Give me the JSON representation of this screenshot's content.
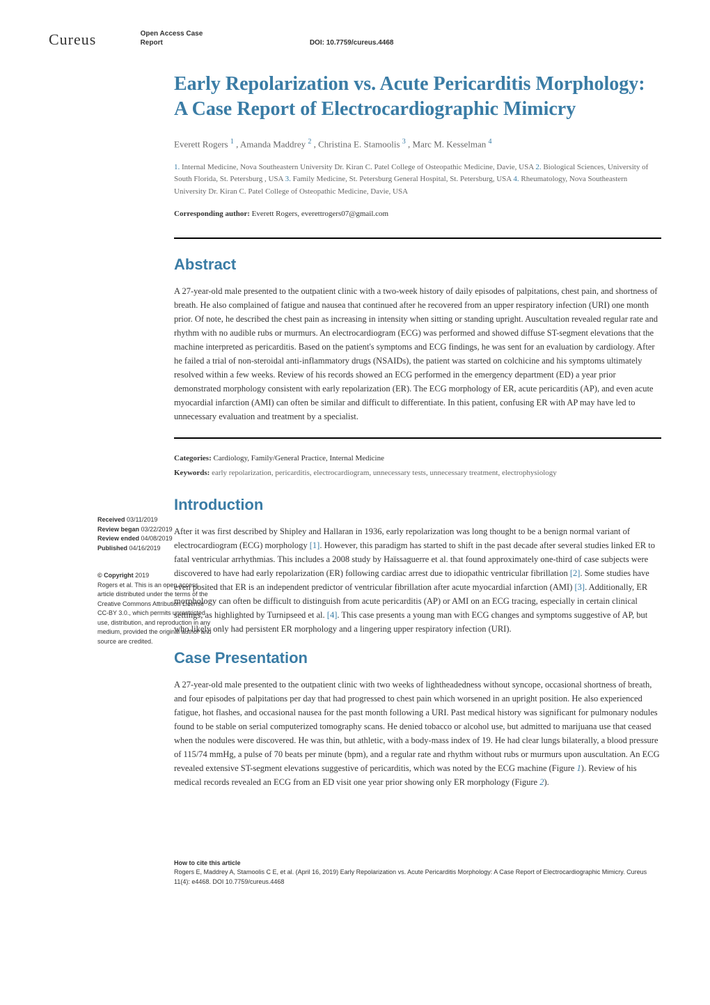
{
  "journal_name": "Cureus",
  "article_type": "Open Access Case Report",
  "doi_label": "DOI:",
  "doi_value": "10.7759/cureus.4468",
  "title": "Early Repolarization vs. Acute Pericarditis Morphology: A Case Report of Electrocardiographic Mimicry",
  "authors": {
    "a1_name": "Everett Rogers",
    "a1_sup": "1",
    "a2_name": "Amanda Maddrey",
    "a2_sup": "2",
    "a3_name": "Christina E. Stamoolis",
    "a3_sup": "3",
    "a4_name": "Marc M. Kesselman",
    "a4_sup": "4"
  },
  "affiliations": {
    "n1": "1.",
    "t1": " Internal Medicine, Nova Southeastern University Dr. Kiran C. Patel College of Osteopathic Medicine, Davie, USA ",
    "n2": "2.",
    "t2": " Biological Sciences, University of South Florida, St. Petersburg , USA ",
    "n3": "3.",
    "t3": " Family Medicine, St. Petersburg General Hospital, St. Petersburg, USA ",
    "n4": "4.",
    "t4": " Rheumatology, Nova Southeastern University Dr. Kiran C. Patel College of Osteopathic Medicine, Davie, USA"
  },
  "corresponding_label": "Corresponding author:",
  "corresponding_value": " Everett Rogers, everettrogers07@gmail.com",
  "abstract_title": "Abstract",
  "abstract_text": "A 27-year-old male presented to the outpatient clinic with a two-week history of daily episodes of palpitations, chest pain, and shortness of breath. He also complained of fatigue and nausea that continued after he recovered from an upper respiratory infection (URI) one month prior. Of note, he described the chest pain as increasing in intensity when sitting or standing upright. Auscultation revealed regular rate and rhythm with no audible rubs or murmurs. An electrocardiogram (ECG) was performed and showed diffuse ST-segment elevations that the machine interpreted as pericarditis. Based on the patient's symptoms and ECG findings, he was sent for an evaluation by cardiology. After he failed a trial of non-steroidal anti-inflammatory drugs (NSAIDs), the patient was started on colchicine and his symptoms ultimately resolved within a few weeks. Review of his records showed an ECG performed in the emergency department (ED) a year prior demonstrated morphology consistent with early repolarization (ER). The ECG morphology of ER, acute pericarditis (AP), and even acute myocardial infarction (AMI) can often be similar and difficult to differentiate. In this patient, confusing ER with AP may have led to unnecessary evaluation and treatment by a specialist.",
  "categories_label": "Categories:",
  "categories_value": " Cardiology, Family/General Practice, Internal Medicine",
  "keywords_label": "Keywords:",
  "keywords_value": " early repolarization, pericarditis, electrocardiogram, unnecessary tests, unnecessary treatment, electrophysiology",
  "introduction_title": "Introduction",
  "intro_p1_part1": "After it was first described by Shipley and Hallaran in 1936, early repolarization was long thought to be a benign normal variant of electrocardiogram (ECG) morphology ",
  "intro_ref1": "[1]",
  "intro_p1_part2": ". However, this paradigm has started to shift in the past decade after several studies linked ER to fatal ventricular arrhythmias. This includes a 2008 study by Haïssaguerre et al. that found approximately one-third of case subjects were discovered to have had early repolarization (ER) following cardiac arrest due to idiopathic ventricular fibrillation ",
  "intro_ref2": "[2]",
  "intro_p1_part3": ". Some studies have even posited that ER is an independent predictor of ventricular fibrillation after acute myocardial infarction (AMI) ",
  "intro_ref3": "[3]",
  "intro_p1_part4": ". Additionally, ER morphology can often be difficult to distinguish from acute pericarditis (AP) or AMI on an ECG tracing, especially in certain clinical settings, as highlighted by Turnipseed et al. ",
  "intro_ref4": "[4]",
  "intro_p1_part5": ". This case presents a young man with ECG changes and symptoms suggestive of AP, but who likely only had persistent ER morphology and a lingering upper respiratory infection (URI).",
  "case_title": "Case Presentation",
  "case_p1_part1": "A 27-year-old male presented to the outpatient clinic with two weeks of lightheadedness without syncope, occasional shortness of breath, and four episodes of palpitations per day that had progressed to chest pain which worsened in an upright position. He also experienced fatigue, hot flashes, and occasional nausea for the past month following a URI. Past medical history was significant for pulmonary nodules found to be stable on serial computerized tomography scans. He denied tobacco or alcohol use, but admitted to marijuana use that ceased when the nodules were discovered. He was thin, but athletic, with a body-mass index of 19. He had clear lungs bilaterally, a blood pressure of 115/74 mmHg, a pulse of 70 beats per minute (bpm), and a regular rate and rhythm without rubs or murmurs upon auscultation. An ECG revealed extensive ST-segment elevations suggestive of pericarditis, which was noted by the ECG machine (Figure ",
  "case_fig1": "1",
  "case_p1_part2": "). Review of his medical records revealed an ECG from an ED visit one year prior showing only ER morphology (Figure ",
  "case_fig2": "2",
  "case_p1_part3": ").",
  "sidebar": {
    "received_label": "Received",
    "received_date": " 03/11/2019",
    "review_began_label": "Review began",
    "review_began_date": " 03/22/2019",
    "review_ended_label": "Review ended",
    "review_ended_date": " 04/08/2019",
    "published_label": "Published",
    "published_date": " 04/16/2019",
    "copyright_label": "© Copyright",
    "copyright_year": " 2019",
    "copyright_text": "Rogers et al. This is an open access article distributed under the terms of the Creative Commons Attribution License CC-BY 3.0., which permits unrestricted use, distribution, and reproduction in any medium, provided the original author and source are credited."
  },
  "footer": {
    "cite_label": "How to cite this article",
    "cite_text": "Rogers E, Maddrey A, Stamoolis C E, et al. (April 16, 2019) Early Repolarization vs. Acute Pericarditis Morphology: A Case Report of Electrocardiographic Mimicry. Cureus 11(4): e4468. DOI 10.7759/cureus.4468"
  },
  "colors": {
    "title_blue": "#3a7ca5",
    "text_gray": "#666666",
    "text_dark": "#333333",
    "background": "#ffffff"
  }
}
